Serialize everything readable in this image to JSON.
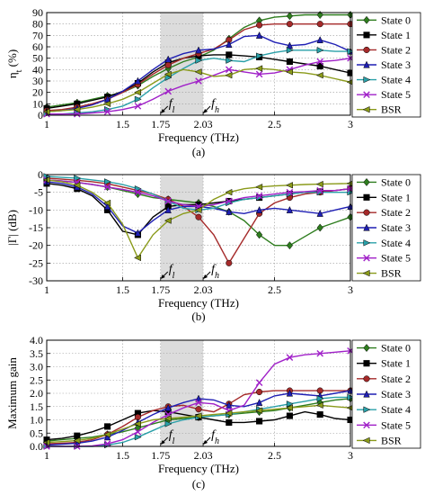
{
  "chart_data": [
    {
      "type": "line",
      "panel_caption": "(a)",
      "xlabel": "Frequency (THz)",
      "ylabel": "η_t (%)",
      "xlim": [
        1,
        3
      ],
      "ylim": [
        0,
        90
      ],
      "x_ticks": [
        "1",
        "1.5",
        "1.75",
        "2.03",
        "2.5",
        "3"
      ],
      "y_ticks": [
        "0",
        "10",
        "20",
        "30",
        "40",
        "50",
        "60",
        "70",
        "80",
        "90"
      ],
      "shaded_band": [
        1.75,
        2.03
      ],
      "annotations": [
        "f_l",
        "f_h"
      ],
      "grid": true,
      "legend_position": "right",
      "x": [
        1.0,
        1.1,
        1.2,
        1.3,
        1.4,
        1.5,
        1.6,
        1.7,
        1.8,
        1.9,
        2.0,
        2.1,
        2.2,
        2.3,
        2.4,
        2.5,
        2.6,
        2.7,
        2.8,
        2.9,
        3.0
      ],
      "series": [
        {
          "name": "State 0",
          "values": [
            7,
            9,
            11,
            14,
            17,
            20,
            26,
            34,
            41,
            47,
            51,
            57,
            67,
            77,
            83,
            86,
            87,
            88,
            88,
            88,
            88
          ]
        },
        {
          "name": "State 1",
          "values": [
            6,
            8,
            10,
            13,
            16,
            21,
            28,
            38,
            46,
            50,
            52,
            53,
            53,
            52,
            51,
            49,
            47,
            45,
            43,
            40,
            37
          ]
        },
        {
          "name": "State 2",
          "values": [
            4,
            5,
            7,
            10,
            14,
            20,
            27,
            36,
            44,
            50,
            54,
            58,
            66,
            75,
            79,
            80,
            80,
            80,
            80,
            80,
            80
          ]
        },
        {
          "name": "State 3",
          "values": [
            3,
            4,
            6,
            9,
            14,
            21,
            30,
            40,
            49,
            54,
            57,
            58,
            62,
            69,
            70,
            64,
            61,
            62,
            66,
            62,
            56
          ]
        },
        {
          "name": "State 4",
          "values": [
            1,
            1,
            2,
            3,
            5,
            8,
            14,
            24,
            33,
            41,
            48,
            50,
            48,
            47,
            52,
            55,
            57,
            57,
            57,
            56,
            56
          ]
        },
        {
          "name": "State 5",
          "values": [
            1,
            1,
            1,
            2,
            3,
            5,
            8,
            14,
            21,
            26,
            30,
            35,
            40,
            38,
            36,
            37,
            40,
            44,
            47,
            48,
            50
          ]
        },
        {
          "name": "BSR",
          "values": [
            3,
            4,
            5,
            7,
            10,
            14,
            20,
            28,
            36,
            40,
            38,
            34,
            35,
            40,
            41,
            40,
            38,
            37,
            35,
            32,
            29
          ]
        }
      ]
    },
    {
      "type": "line",
      "panel_caption": "(b)",
      "xlabel": "Frequency (THz)",
      "ylabel": "|Γ| (dB)",
      "xlim": [
        1,
        3
      ],
      "ylim": [
        -30,
        0
      ],
      "x_ticks": [
        "1",
        "1.5",
        "1.75",
        "2.03",
        "2.5",
        "3"
      ],
      "y_ticks": [
        "0",
        "-5",
        "-10",
        "-15",
        "-20",
        "-25",
        "-30"
      ],
      "shaded_band": [
        1.75,
        2.03
      ],
      "annotations": [
        "f_l",
        "f_h"
      ],
      "grid": true,
      "legend_position": "right",
      "x": [
        1.0,
        1.1,
        1.2,
        1.3,
        1.4,
        1.5,
        1.6,
        1.7,
        1.8,
        1.9,
        2.0,
        2.1,
        2.2,
        2.3,
        2.4,
        2.5,
        2.6,
        2.7,
        2.8,
        2.9,
        3.0
      ],
      "series": [
        {
          "name": "State 0",
          "values": [
            -1.5,
            -1.8,
            -2.2,
            -2.8,
            -3.5,
            -4.5,
            -5.5,
            -6.5,
            -7.0,
            -7.5,
            -8.0,
            -9.0,
            -10.5,
            -13.0,
            -17.0,
            -20.0,
            -20.0,
            -17.5,
            -15.0,
            -13.5,
            -12.0
          ]
        },
        {
          "name": "State 1",
          "values": [
            -2.5,
            -3.0,
            -4.0,
            -6.0,
            -10.0,
            -16.0,
            -17.0,
            -12.0,
            -9.0,
            -8.5,
            -8.5,
            -8.0,
            -7.5,
            -7.0,
            -6.5,
            -6.0,
            -5.5,
            -5.0,
            -4.8,
            -4.5,
            -4.0
          ]
        },
        {
          "name": "State 2",
          "values": [
            -1.0,
            -1.3,
            -1.6,
            -2.0,
            -2.6,
            -3.5,
            -4.5,
            -5.5,
            -7.0,
            -9.0,
            -12.0,
            -17.0,
            -25.0,
            -18.0,
            -11.0,
            -8.0,
            -6.5,
            -5.5,
            -5.0,
            -4.5,
            -4.0
          ]
        },
        {
          "name": "State 3",
          "values": [
            -2.0,
            -2.5,
            -3.5,
            -5.5,
            -9.0,
            -14.5,
            -16.5,
            -13.0,
            -10.0,
            -9.0,
            -9.0,
            -9.5,
            -10.5,
            -11.0,
            -10.0,
            -9.5,
            -10.0,
            -10.5,
            -11.0,
            -10.0,
            -9.0
          ]
        },
        {
          "name": "State 4",
          "values": [
            -0.5,
            -0.8,
            -1.0,
            -1.5,
            -2.0,
            -2.8,
            -4.0,
            -5.5,
            -7.5,
            -9.5,
            -10.0,
            -9.5,
            -8.0,
            -7.0,
            -6.5,
            -6.0,
            -5.5,
            -5.0,
            -5.0,
            -5.0,
            -5.0
          ]
        },
        {
          "name": "State 5",
          "values": [
            -1.5,
            -1.8,
            -2.2,
            -2.8,
            -3.5,
            -4.2,
            -5.0,
            -6.0,
            -7.5,
            -8.5,
            -9.0,
            -8.5,
            -7.5,
            -6.5,
            -6.0,
            -5.5,
            -5.0,
            -4.8,
            -4.5,
            -4.5,
            -4.0
          ]
        },
        {
          "name": "BSR",
          "values": [
            -1.5,
            -2.0,
            -3.0,
            -5.0,
            -8.0,
            -14.0,
            -23.5,
            -17.0,
            -13.0,
            -11.0,
            -10.0,
            -7.0,
            -5.0,
            -4.0,
            -3.5,
            -3.2,
            -3.0,
            -2.8,
            -2.7,
            -2.6,
            -2.5
          ]
        }
      ]
    },
    {
      "type": "line",
      "panel_caption": "(c)",
      "xlabel": "Frequency (THz)",
      "ylabel": "Maximum gain",
      "xlim": [
        1,
        3
      ],
      "ylim": [
        0,
        4
      ],
      "x_ticks": [
        "1",
        "1.5",
        "1.75",
        "2.03",
        "2.5",
        "3"
      ],
      "y_ticks": [
        "0.0",
        "0.5",
        "1.0",
        "1.5",
        "2.0",
        "2.5",
        "3.0",
        "3.5",
        "4.0"
      ],
      "shaded_band": [
        1.75,
        2.03
      ],
      "annotations": [
        "f_l",
        "f_h"
      ],
      "grid": true,
      "legend_position": "right",
      "x": [
        1.0,
        1.1,
        1.2,
        1.3,
        1.4,
        1.5,
        1.6,
        1.7,
        1.8,
        1.9,
        2.0,
        2.1,
        2.2,
        2.3,
        2.4,
        2.5,
        2.6,
        2.7,
        2.8,
        2.9,
        3.0
      ],
      "series": [
        {
          "name": "State 0",
          "values": [
            0.2,
            0.25,
            0.3,
            0.35,
            0.45,
            0.55,
            0.7,
            0.85,
            1.0,
            1.05,
            1.1,
            1.15,
            1.2,
            1.25,
            1.3,
            1.35,
            1.45,
            1.55,
            1.65,
            1.75,
            1.8
          ]
        },
        {
          "name": "State 1",
          "values": [
            0.25,
            0.3,
            0.4,
            0.55,
            0.75,
            1.0,
            1.25,
            1.35,
            1.3,
            1.2,
            1.1,
            1.0,
            0.9,
            0.9,
            0.95,
            1.0,
            1.15,
            1.3,
            1.2,
            1.05,
            1.0
          ]
        },
        {
          "name": "State 2",
          "values": [
            0.1,
            0.12,
            0.15,
            0.25,
            0.45,
            0.75,
            1.1,
            1.35,
            1.5,
            1.55,
            1.4,
            1.3,
            1.6,
            1.95,
            2.05,
            2.1,
            2.1,
            2.1,
            2.1,
            2.1,
            2.1
          ]
        },
        {
          "name": "State 3",
          "values": [
            0.05,
            0.08,
            0.12,
            0.2,
            0.35,
            0.6,
            0.9,
            1.2,
            1.45,
            1.65,
            1.8,
            1.75,
            1.55,
            1.5,
            1.65,
            1.9,
            2.0,
            1.95,
            1.9,
            2.0,
            2.1
          ]
        },
        {
          "name": "State 4",
          "values": [
            0.0,
            0.0,
            0.0,
            0.0,
            0.05,
            0.15,
            0.35,
            0.6,
            0.85,
            1.0,
            1.1,
            1.15,
            1.2,
            1.3,
            1.4,
            1.5,
            1.6,
            1.7,
            1.8,
            1.85,
            1.85
          ]
        },
        {
          "name": "State 5",
          "values": [
            0.0,
            0.0,
            0.0,
            0.02,
            0.1,
            0.25,
            0.55,
            0.9,
            1.2,
            1.45,
            1.65,
            1.6,
            1.35,
            1.55,
            2.4,
            3.1,
            3.35,
            3.45,
            3.5,
            3.55,
            3.6
          ]
        },
        {
          "name": "BSR",
          "values": [
            0.15,
            0.18,
            0.22,
            0.3,
            0.45,
            0.65,
            0.85,
            1.0,
            1.05,
            1.1,
            1.15,
            1.2,
            1.25,
            1.3,
            1.35,
            1.4,
            1.45,
            1.5,
            1.55,
            1.5,
            1.45
          ]
        }
      ]
    }
  ],
  "styles": [
    {
      "name": "State 0",
      "color": "#2e7d1e",
      "marker": "diamond"
    },
    {
      "name": "State 1",
      "color": "#000000",
      "marker": "square"
    },
    {
      "name": "State 2",
      "color": "#a52a2a",
      "marker": "circle"
    },
    {
      "name": "State 3",
      "color": "#1f1fb4",
      "marker": "triangle-up"
    },
    {
      "name": "State 4",
      "color": "#2aa0a8",
      "marker": "triangle-right"
    },
    {
      "name": "State 5",
      "color": "#a020c8",
      "marker": "x"
    },
    {
      "name": "BSR",
      "color": "#8a9a1a",
      "marker": "triangle-left"
    }
  ]
}
